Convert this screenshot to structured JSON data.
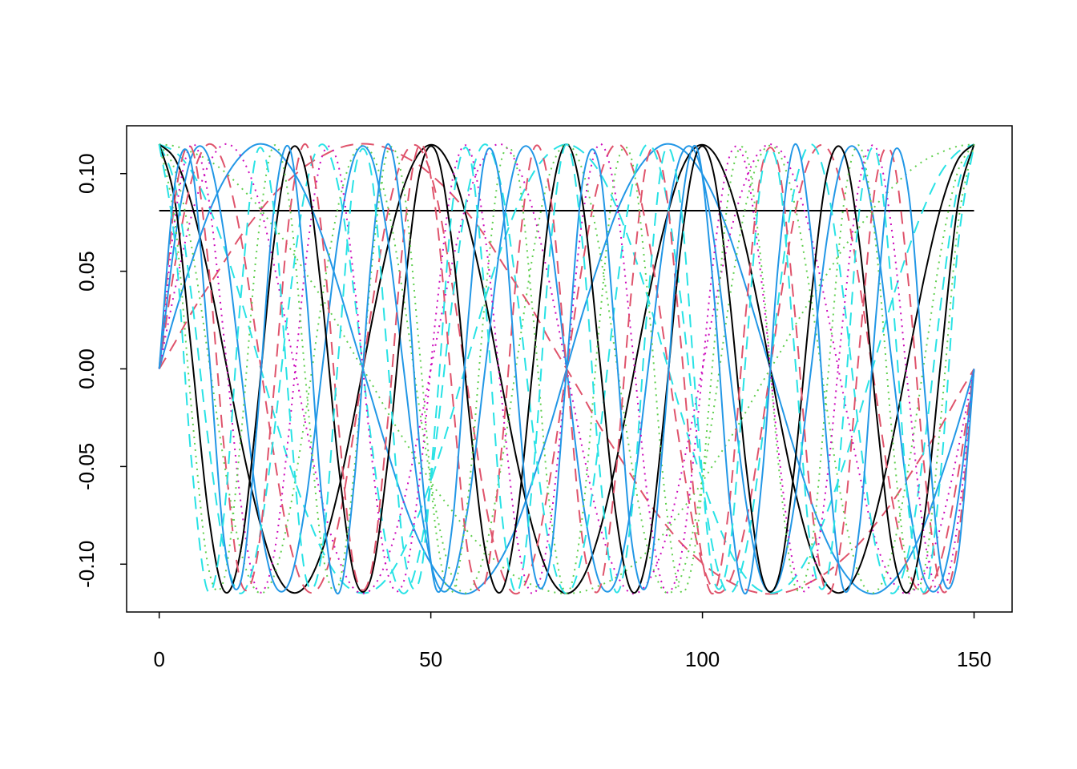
{
  "chart_data": {
    "type": "line",
    "x": [
      0,
      3,
      6,
      9,
      12,
      15,
      18,
      21,
      24,
      27,
      30,
      33,
      36,
      39,
      42,
      45,
      48,
      51,
      54,
      57,
      60,
      63,
      66,
      69,
      72,
      75,
      78,
      81,
      84,
      87,
      90,
      93,
      96,
      99,
      102,
      105,
      108,
      111,
      114,
      117,
      120,
      123,
      126,
      129,
      132,
      135,
      138,
      141,
      144,
      147,
      150
    ],
    "xlim": [
      -6,
      157
    ],
    "ylim": [
      -0.1245,
      0.1245
    ],
    "xticks": [
      0,
      50,
      100,
      150
    ],
    "yticks": [
      {
        "value": -0.1,
        "label": "-0.10"
      },
      -0.05,
      {
        "value": 0,
        "label": "0.00"
      },
      0.05,
      {
        "value": 0.1,
        "label": "0.10"
      }
    ],
    "series": [
      {
        "color": "#000000",
        "linestyle": "solid",
        "values": [
          0.081,
          0.081,
          0.081,
          0.081,
          0.081,
          0.081,
          0.081,
          0.081,
          0.081,
          0.081,
          0.081,
          0.081,
          0.081,
          0.081,
          0.081,
          0.081,
          0.081,
          0.081,
          0.081,
          0.081,
          0.081,
          0.081,
          0.081,
          0.081,
          0.081,
          0.081,
          0.081,
          0.081,
          0.081,
          0.081,
          0.081,
          0.081,
          0.081,
          0.081,
          0.081,
          0.081,
          0.081,
          0.081,
          0.081,
          0.081,
          0.081,
          0.081,
          0.081,
          0.081,
          0.081,
          0.081,
          0.081,
          0.081,
          0.081,
          0.081,
          0.081
        ]
      },
      {
        "color": "#DF536B",
        "linestyle": "dashed",
        "values": [
          0,
          0.014,
          0.029,
          0.042,
          0.055,
          0.068,
          0.079,
          0.089,
          0.097,
          0.104,
          0.109,
          0.113,
          0.115,
          0.115,
          0.113,
          0.109,
          0.104,
          0.097,
          0.089,
          0.079,
          0.068,
          0.055,
          0.042,
          0.029,
          0.014,
          0,
          -0.014,
          -0.029,
          -0.042,
          -0.055,
          -0.068,
          -0.079,
          -0.089,
          -0.097,
          -0.104,
          -0.109,
          -0.113,
          -0.115,
          -0.115,
          -0.113,
          -0.109,
          -0.104,
          -0.097,
          -0.089,
          -0.079,
          -0.068,
          -0.055,
          -0.042,
          -0.029,
          -0.014,
          0
        ]
      },
      {
        "color": "#61D04F",
        "linestyle": "dotted",
        "values": [
          0.115,
          0.114,
          0.111,
          0.107,
          0.101,
          0.093,
          0.084,
          0.073,
          0.062,
          0.049,
          0.036,
          0.022,
          0.007,
          -0.007,
          -0.022,
          -0.036,
          -0.049,
          -0.062,
          -0.073,
          -0.084,
          -0.093,
          -0.101,
          -0.107,
          -0.111,
          -0.114,
          -0.115,
          -0.114,
          -0.111,
          -0.107,
          -0.101,
          -0.093,
          -0.084,
          -0.073,
          -0.062,
          -0.049,
          -0.036,
          -0.022,
          -0.007,
          0.007,
          0.022,
          0.036,
          0.049,
          0.062,
          0.073,
          0.084,
          0.093,
          0.101,
          0.107,
          0.111,
          0.114,
          0.115
        ]
      },
      {
        "color": "#2297E6",
        "linestyle": "solid",
        "values": [
          0,
          0.029,
          0.055,
          0.079,
          0.097,
          0.109,
          0.115,
          0.113,
          0.104,
          0.089,
          0.068,
          0.042,
          0.014,
          -0.014,
          -0.042,
          -0.068,
          -0.089,
          -0.104,
          -0.113,
          -0.115,
          -0.109,
          -0.097,
          -0.079,
          -0.055,
          -0.029,
          0,
          0.029,
          0.055,
          0.079,
          0.097,
          0.109,
          0.115,
          0.113,
          0.104,
          0.089,
          0.068,
          0.042,
          0.014,
          -0.014,
          -0.042,
          -0.068,
          -0.089,
          -0.104,
          -0.113,
          -0.115,
          -0.109,
          -0.097,
          -0.079,
          -0.055,
          -0.029,
          0
        ]
      },
      {
        "color": "#28E2E5",
        "linestyle": "dashed",
        "values": [
          0.115,
          0.111,
          0.101,
          0.084,
          0.062,
          0.036,
          0.007,
          -0.022,
          -0.049,
          -0.073,
          -0.093,
          -0.107,
          -0.114,
          -0.114,
          -0.107,
          -0.093,
          -0.073,
          -0.049,
          -0.022,
          0.007,
          0.036,
          0.062,
          0.084,
          0.101,
          0.111,
          0.115,
          0.111,
          0.101,
          0.084,
          0.062,
          0.036,
          0.007,
          -0.022,
          -0.049,
          -0.073,
          -0.093,
          -0.107,
          -0.114,
          -0.114,
          -0.107,
          -0.093,
          -0.073,
          -0.049,
          -0.022,
          0.007,
          0.036,
          0.062,
          0.084,
          0.101,
          0.111,
          0.115
        ]
      },
      {
        "color": "#CD0BBC",
        "linestyle": "dotted",
        "values": [
          0,
          0.042,
          0.079,
          0.104,
          0.115,
          0.109,
          0.089,
          0.055,
          0.014,
          -0.029,
          -0.068,
          -0.097,
          -0.113,
          -0.113,
          -0.097,
          -0.068,
          -0.029,
          0.014,
          0.055,
          0.089,
          0.109,
          0.115,
          0.104,
          0.079,
          0.042,
          0,
          -0.042,
          -0.079,
          -0.104,
          -0.115,
          -0.109,
          -0.089,
          -0.055,
          -0.014,
          0.029,
          0.068,
          0.097,
          0.113,
          0.113,
          0.097,
          0.068,
          0.029,
          -0.014,
          -0.055,
          -0.089,
          -0.109,
          -0.115,
          -0.104,
          -0.079,
          -0.042,
          0
        ]
      },
      {
        "color": "#000000",
        "linestyle": "solid",
        "values": [
          0.115,
          0.107,
          0.084,
          0.049,
          0.007,
          -0.036,
          -0.073,
          -0.101,
          -0.114,
          -0.111,
          -0.093,
          -0.062,
          -0.022,
          0.022,
          0.062,
          0.093,
          0.111,
          0.114,
          0.101,
          0.073,
          0.036,
          -0.007,
          -0.049,
          -0.084,
          -0.107,
          -0.115,
          -0.107,
          -0.084,
          -0.049,
          -0.007,
          0.036,
          0.073,
          0.101,
          0.114,
          0.111,
          0.093,
          0.062,
          0.022,
          -0.022,
          -0.062,
          -0.093,
          -0.111,
          -0.114,
          -0.101,
          -0.073,
          -0.036,
          0.007,
          0.049,
          0.084,
          0.107,
          0.115
        ]
      },
      {
        "color": "#DF536B",
        "linestyle": "dashed",
        "values": [
          0,
          0.055,
          0.097,
          0.115,
          0.104,
          0.068,
          0.014,
          -0.042,
          -0.089,
          -0.113,
          -0.109,
          -0.079,
          -0.029,
          0.029,
          0.079,
          0.109,
          0.113,
          0.089,
          0.042,
          -0.014,
          -0.068,
          -0.104,
          -0.115,
          -0.097,
          -0.055,
          0,
          0.055,
          0.097,
          0.115,
          0.104,
          0.068,
          0.014,
          -0.042,
          -0.089,
          -0.113,
          -0.109,
          -0.079,
          -0.029,
          0.029,
          0.079,
          0.109,
          0.113,
          0.089,
          0.042,
          -0.014,
          -0.068,
          -0.104,
          -0.115,
          -0.097,
          -0.055,
          0
        ]
      },
      {
        "color": "#61D04F",
        "linestyle": "dotted",
        "values": [
          0.115,
          0.101,
          0.062,
          0.007,
          -0.049,
          -0.093,
          -0.114,
          -0.107,
          -0.073,
          -0.022,
          0.036,
          0.084,
          0.111,
          0.111,
          0.084,
          0.036,
          -0.022,
          -0.073,
          -0.107,
          -0.114,
          -0.093,
          -0.049,
          0.007,
          0.062,
          0.101,
          0.115,
          0.101,
          0.062,
          0.007,
          -0.049,
          -0.093,
          -0.114,
          -0.107,
          -0.073,
          -0.022,
          0.036,
          0.084,
          0.111,
          0.111,
          0.084,
          0.036,
          -0.022,
          -0.073,
          -0.107,
          -0.114,
          -0.093,
          -0.049,
          0.007,
          0.062,
          0.101,
          0.115
        ]
      },
      {
        "color": "#2297E6",
        "linestyle": "solid",
        "values": [
          0,
          0.068,
          0.109,
          0.109,
          0.068,
          0,
          -0.068,
          -0.109,
          -0.109,
          -0.068,
          0,
          0.068,
          0.109,
          0.109,
          0.068,
          0,
          -0.068,
          -0.109,
          -0.109,
          -0.068,
          0,
          0.068,
          0.109,
          0.109,
          0.068,
          0,
          -0.068,
          -0.109,
          -0.109,
          -0.068,
          0,
          0.068,
          0.109,
          0.109,
          0.068,
          0,
          -0.068,
          -0.109,
          -0.109,
          -0.068,
          0,
          0.068,
          0.109,
          0.109,
          0.068,
          0,
          -0.068,
          -0.109,
          -0.109,
          -0.068,
          0
        ]
      },
      {
        "color": "#28E2E5",
        "linestyle": "dashed",
        "values": [
          0.115,
          0.093,
          0.036,
          -0.036,
          -0.093,
          -0.115,
          -0.093,
          -0.036,
          0.036,
          0.093,
          0.115,
          0.093,
          0.036,
          -0.036,
          -0.093,
          -0.115,
          -0.093,
          -0.036,
          0.036,
          0.093,
          0.115,
          0.093,
          0.036,
          -0.036,
          -0.093,
          -0.115,
          -0.093,
          -0.036,
          0.036,
          0.093,
          0.115,
          0.093,
          0.036,
          -0.036,
          -0.093,
          -0.115,
          -0.093,
          -0.036,
          0.036,
          0.093,
          0.115,
          0.093,
          0.036,
          -0.036,
          -0.093,
          -0.115,
          -0.093,
          -0.036,
          0.036,
          0.093,
          0.115
        ]
      },
      {
        "color": "#CD0BBC",
        "linestyle": "dotted",
        "values": [
          0,
          0.079,
          0.115,
          0.089,
          0.014,
          -0.068,
          -0.113,
          -0.097,
          -0.029,
          0.055,
          0.109,
          0.104,
          0.042,
          -0.042,
          -0.104,
          -0.109,
          -0.055,
          0.029,
          0.097,
          0.113,
          0.068,
          -0.014,
          -0.089,
          -0.115,
          -0.079,
          0,
          0.079,
          0.115,
          0.089,
          0.014,
          -0.068,
          -0.113,
          -0.097,
          -0.029,
          0.055,
          0.109,
          0.104,
          0.042,
          -0.042,
          -0.104,
          -0.109,
          -0.055,
          0.029,
          0.097,
          0.113,
          0.068,
          -0.014,
          -0.089,
          -0.115,
          -0.079,
          0
        ]
      },
      {
        "color": "#000000",
        "linestyle": "solid",
        "values": [
          0.115,
          0.084,
          0.007,
          -0.073,
          -0.114,
          -0.093,
          -0.022,
          0.062,
          0.111,
          0.101,
          0.036,
          -0.049,
          -0.107,
          -0.107,
          -0.049,
          0.036,
          0.101,
          0.111,
          0.062,
          -0.022,
          -0.093,
          -0.114,
          -0.073,
          0.007,
          0.084,
          0.115,
          0.084,
          0.007,
          -0.073,
          -0.114,
          -0.093,
          -0.022,
          0.062,
          0.111,
          0.101,
          0.036,
          -0.049,
          -0.107,
          -0.107,
          -0.049,
          0.036,
          0.101,
          0.111,
          0.062,
          -0.022,
          -0.093,
          -0.114,
          -0.073,
          0.007,
          0.084,
          0.115
        ]
      },
      {
        "color": "#DF536B",
        "linestyle": "dashed",
        "values": [
          0,
          0.089,
          0.113,
          0.055,
          -0.042,
          -0.109,
          -0.097,
          -0.014,
          0.079,
          0.115,
          0.068,
          -0.029,
          -0.104,
          -0.104,
          -0.029,
          0.068,
          0.115,
          0.079,
          -0.014,
          -0.097,
          -0.109,
          -0.042,
          0.055,
          0.113,
          0.089,
          0,
          -0.089,
          -0.113,
          -0.055,
          0.042,
          0.109,
          0.097,
          0.014,
          -0.079,
          -0.115,
          -0.068,
          0.029,
          0.104,
          0.104,
          0.029,
          -0.068,
          -0.115,
          -0.079,
          0.014,
          0.097,
          0.109,
          0.042,
          -0.055,
          -0.113,
          -0.089,
          0
        ]
      },
      {
        "color": "#61D04F",
        "linestyle": "dotted",
        "values": [
          0.115,
          0.073,
          -0.022,
          -0.101,
          -0.107,
          -0.036,
          0.062,
          0.114,
          0.084,
          -0.007,
          -0.093,
          -0.111,
          -0.049,
          0.049,
          0.111,
          0.093,
          0.007,
          -0.084,
          -0.114,
          -0.062,
          0.036,
          0.107,
          0.101,
          0.022,
          -0.073,
          -0.115,
          -0.073,
          0.022,
          0.101,
          0.107,
          0.036,
          -0.062,
          -0.114,
          -0.084,
          0.007,
          0.093,
          0.111,
          0.049,
          -0.049,
          -0.111,
          -0.093,
          -0.007,
          0.084,
          0.114,
          0.062,
          -0.036,
          -0.107,
          -0.101,
          -0.022,
          0.073,
          0.115
        ]
      },
      {
        "color": "#2297E6",
        "linestyle": "solid",
        "values": [
          0,
          0.097,
          0.104,
          0.014,
          -0.089,
          -0.109,
          -0.029,
          0.079,
          0.113,
          0.042,
          -0.068,
          -0.115,
          -0.055,
          0.055,
          0.115,
          0.068,
          -0.042,
          -0.113,
          -0.079,
          0.029,
          0.109,
          0.089,
          -0.014,
          -0.104,
          -0.097,
          0,
          0.097,
          0.104,
          0.014,
          -0.089,
          -0.109,
          -0.029,
          0.079,
          0.113,
          0.042,
          -0.068,
          -0.115,
          -0.055,
          0.055,
          0.115,
          0.068,
          -0.042,
          -0.113,
          -0.079,
          0.029,
          0.109,
          0.089,
          -0.014,
          -0.104,
          -0.097,
          0
        ]
      },
      {
        "color": "#28E2E5",
        "linestyle": "dashed",
        "values": [
          0.115,
          0.062,
          -0.049,
          -0.114,
          -0.073,
          0.036,
          0.111,
          0.084,
          -0.022,
          -0.107,
          -0.093,
          0.007,
          0.101,
          0.101,
          0.007,
          -0.093,
          -0.107,
          -0.022,
          0.084,
          0.111,
          0.036,
          -0.073,
          -0.114,
          -0.049,
          0.062,
          0.115,
          0.062,
          -0.049,
          -0.114,
          -0.073,
          0.036,
          0.111,
          0.084,
          -0.022,
          -0.107,
          -0.093,
          0.007,
          0.101,
          0.101,
          0.007,
          -0.093,
          -0.107,
          -0.022,
          0.084,
          0.111,
          0.036,
          -0.073,
          -0.114,
          -0.049,
          0.062,
          0.115
        ]
      }
    ]
  }
}
